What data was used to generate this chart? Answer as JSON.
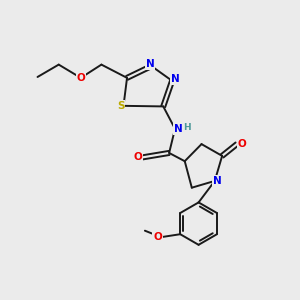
{
  "background_color": "#ebebeb",
  "bond_color": "#1a1a1a",
  "atom_colors": {
    "N": "#0000ee",
    "O": "#ee0000",
    "S": "#bbaa00",
    "H": "#4d9999",
    "C": "#1a1a1a"
  },
  "figsize": [
    3.0,
    3.0
  ],
  "dpi": 100
}
